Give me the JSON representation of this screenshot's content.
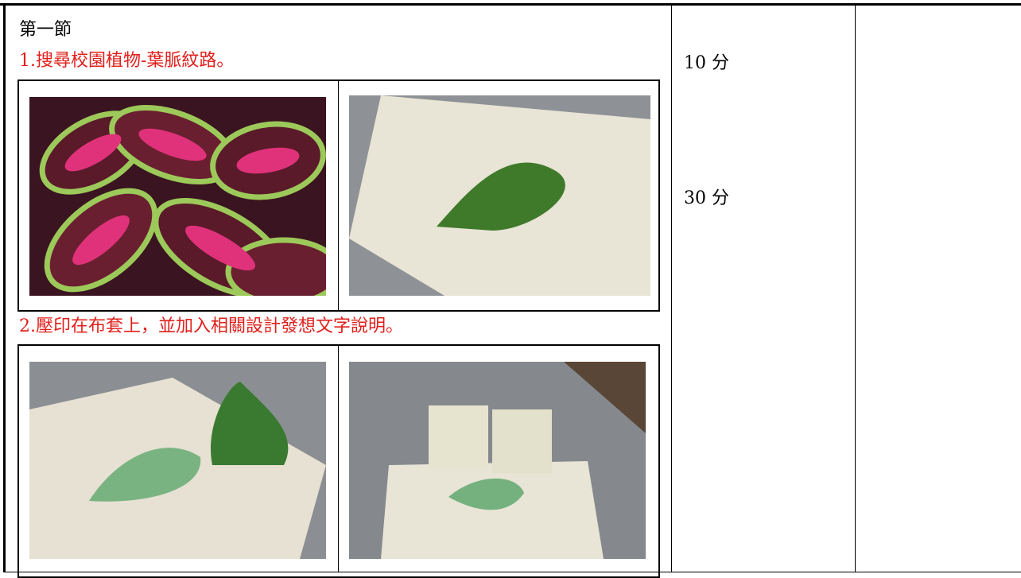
{
  "section": {
    "title": "第一節",
    "step1": "1.搜尋校園植物-葉脈紋路。",
    "step2": "2.壓印在布套上，並加入相關設計發想文字說明。"
  },
  "time": {
    "first": "10 分",
    "second": "30 分"
  }
}
